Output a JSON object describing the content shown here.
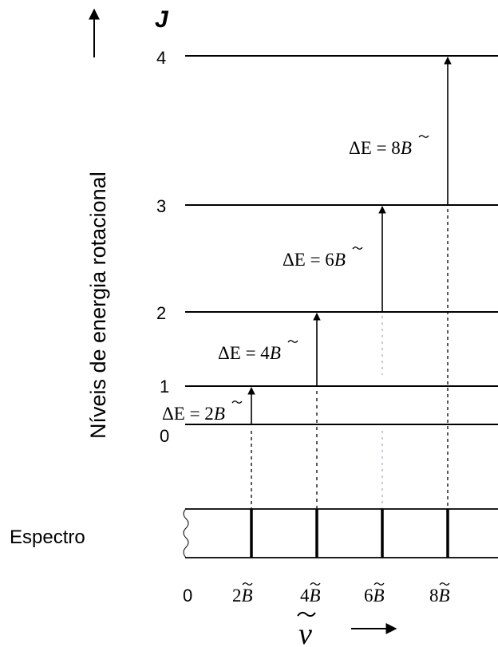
{
  "axis": {
    "y_symbol": "J",
    "y_label": "Níveis de energia rotacional",
    "x_symbol": "ν",
    "x_zero": "0"
  },
  "levels": [
    {
      "j": "0"
    },
    {
      "j": "1"
    },
    {
      "j": "2"
    },
    {
      "j": "3"
    },
    {
      "j": "4"
    }
  ],
  "transitions": [
    {
      "from": "0",
      "to": "1",
      "label_prefix": "ΔE = 2",
      "label_var": "B",
      "tick_prefix": "2",
      "tick_var": "B"
    },
    {
      "from": "1",
      "to": "2",
      "label_prefix": "ΔE = 4",
      "label_var": "B",
      "tick_prefix": "4",
      "tick_var": "B"
    },
    {
      "from": "2",
      "to": "3",
      "label_prefix": "ΔE = 6",
      "label_var": "B",
      "tick_prefix": "6",
      "tick_var": "B"
    },
    {
      "from": "3",
      "to": "4",
      "label_prefix": "ΔE = 8",
      "label_var": "B",
      "tick_prefix": "8",
      "tick_var": "B"
    }
  ],
  "spectrum": {
    "label": "Espectro"
  },
  "colors": {
    "line": "#000000",
    "dashed_light": "#a0b0d0"
  }
}
